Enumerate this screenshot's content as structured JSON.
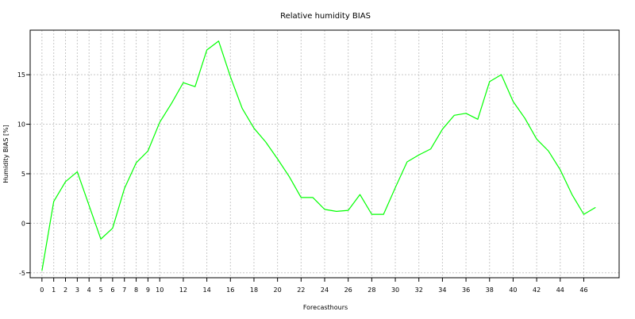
{
  "chart_data": {
    "type": "line",
    "title": "Relative humidity BIAS",
    "xlabel": "Forecasthours",
    "ylabel": "Humidity BIAS [%]",
    "xlim": [
      -1,
      49
    ],
    "ylim": [
      -5.5,
      19.5
    ],
    "x_ticks": [
      0,
      1,
      2,
      3,
      4,
      5,
      6,
      7,
      8,
      9,
      10,
      12,
      14,
      16,
      18,
      20,
      22,
      24,
      26,
      28,
      30,
      32,
      34,
      36,
      38,
      40,
      42,
      44,
      46
    ],
    "y_ticks": [
      -5,
      0,
      5,
      10,
      15
    ],
    "grid": true,
    "series": [
      {
        "color": "#00ff00",
        "x": [
          0,
          1,
          2,
          3,
          4,
          5,
          6,
          7,
          8,
          9,
          10,
          11,
          12,
          13,
          14,
          15,
          16,
          17,
          18,
          19,
          20,
          21,
          22,
          23,
          24,
          25,
          26,
          27,
          28,
          29,
          30,
          31,
          32,
          33,
          34,
          35,
          36,
          37,
          38,
          39,
          40,
          41,
          42,
          43,
          44,
          45,
          46,
          47
        ],
        "values": [
          -4.8,
          2.2,
          4.2,
          5.2,
          1.8,
          -1.6,
          -0.5,
          3.5,
          6.1,
          7.3,
          10.2,
          12.1,
          14.2,
          13.8,
          17.5,
          18.4,
          14.8,
          11.6,
          9.6,
          8.2,
          6.5,
          4.7,
          2.6,
          2.6,
          1.4,
          1.2,
          1.3,
          2.9,
          0.9,
          0.9,
          3.6,
          6.2,
          6.9,
          7.5,
          9.5,
          10.9,
          11.1,
          10.5,
          14.3,
          15.0,
          12.3,
          10.6,
          8.5,
          7.3,
          5.4,
          2.9,
          0.9,
          1.6
        ]
      }
    ]
  }
}
